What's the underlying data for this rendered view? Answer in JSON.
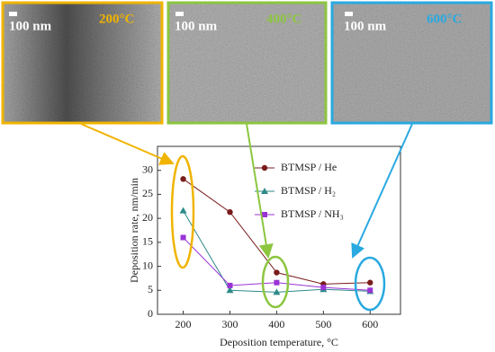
{
  "panels": [
    {
      "scale_bar": "100 nm",
      "temperature": "200°C"
    },
    {
      "scale_bar": "100 nm",
      "temperature": "400°C"
    },
    {
      "scale_bar": "100 nm",
      "temperature": "600°C"
    }
  ],
  "chart_data": {
    "type": "line",
    "x_label": "Deposition temperature, °C",
    "y_label": "Deposition rate, nm/min",
    "x": [
      200,
      300,
      400,
      500,
      600
    ],
    "series": [
      {
        "name": "BTMSP / He",
        "color": "#7a1c1c",
        "marker": "circle",
        "values": [
          28.2,
          21.3,
          8.7,
          6.3,
          6.6
        ]
      },
      {
        "name": "BTMSP / H₂",
        "color": "#2f8a8a",
        "marker": "triangle",
        "values": [
          21.6,
          5.0,
          4.6,
          5.2,
          4.8
        ]
      },
      {
        "name": "BTMSP / NH₃",
        "color": "#9a33d6",
        "marker": "square",
        "values": [
          16.0,
          6.0,
          6.6,
          5.6,
          5.0
        ]
      }
    ],
    "xlim": [
      145,
      665
    ],
    "xticks": [
      200,
      300,
      400,
      500,
      600
    ],
    "ylim": [
      0,
      35
    ],
    "yticks": [
      0,
      5,
      10,
      15,
      20,
      25,
      30
    ]
  }
}
